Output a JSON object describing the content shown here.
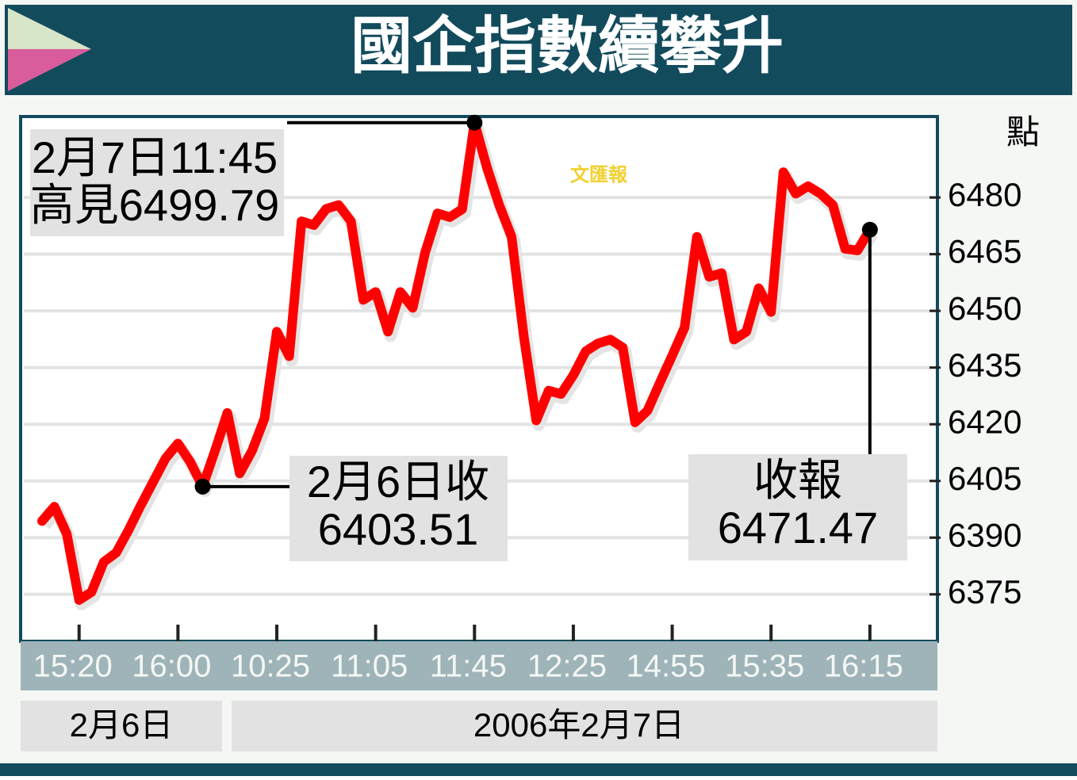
{
  "chart_data": {
    "type": "line",
    "title": "國企指數續攀升",
    "y_unit": "點",
    "watermark": "文匯報",
    "categories": [
      null,
      null,
      null,
      "15:20",
      null,
      null,
      null,
      null,
      null,
      null,
      null,
      "16:00",
      null,
      null,
      null,
      null,
      null,
      null,
      null,
      "10:25",
      null,
      null,
      null,
      null,
      null,
      null,
      null,
      "11:05",
      null,
      null,
      null,
      null,
      null,
      null,
      null,
      "11:45",
      null,
      null,
      null,
      null,
      null,
      null,
      null,
      "12:25",
      null,
      null,
      null,
      null,
      null,
      null,
      null,
      "14:55",
      null,
      null,
      null,
      null,
      null,
      null,
      null,
      "15:35",
      null,
      null,
      null,
      null,
      null,
      null,
      null,
      "16:15"
    ],
    "series": [
      {
        "color": "#ff0000",
        "values": [
          6394.4,
          6398.2,
          6391,
          6373.5,
          6375.6,
          6383.6,
          6386,
          6392,
          6398.6,
          6404.8,
          6411,
          6414.9,
          6410,
          6403.51,
          6413,
          6423,
          6407,
          6413,
          6421.5,
          6444.5,
          6438,
          6473.7,
          6472.7,
          6477,
          6478,
          6473.7,
          6452.9,
          6455,
          6444.5,
          6455,
          6450.8,
          6465.4,
          6475.8,
          6474.8,
          6476.9,
          6499.79,
          6488,
          6478,
          6469.6,
          6443,
          6421,
          6428.9,
          6428,
          6433,
          6439.3,
          6441.4,
          6442.4,
          6440.3,
          6420.5,
          6423.6,
          6431,
          6438.2,
          6445.6,
          6469.6,
          6459,
          6460,
          6442.4,
          6444.5,
          6456,
          6449.7,
          6486.7,
          6481,
          6483,
          6481,
          6478,
          6466.4,
          6466,
          6471.47
        ]
      }
    ],
    "ylim": [
      6363,
      6501
    ],
    "yticks": [
      6375,
      6390,
      6405,
      6420,
      6435,
      6450,
      6465,
      6480
    ],
    "grid": true,
    "date_groups": [
      "2月6日",
      "2006年2月7日"
    ],
    "annotations": [
      {
        "lines": [
          "2月7日11:45",
          "高見6499.79"
        ]
      },
      {
        "lines": [
          "2月6日收",
          "6403.51"
        ]
      },
      {
        "lines": [
          "收報",
          "6471.47"
        ]
      }
    ]
  }
}
